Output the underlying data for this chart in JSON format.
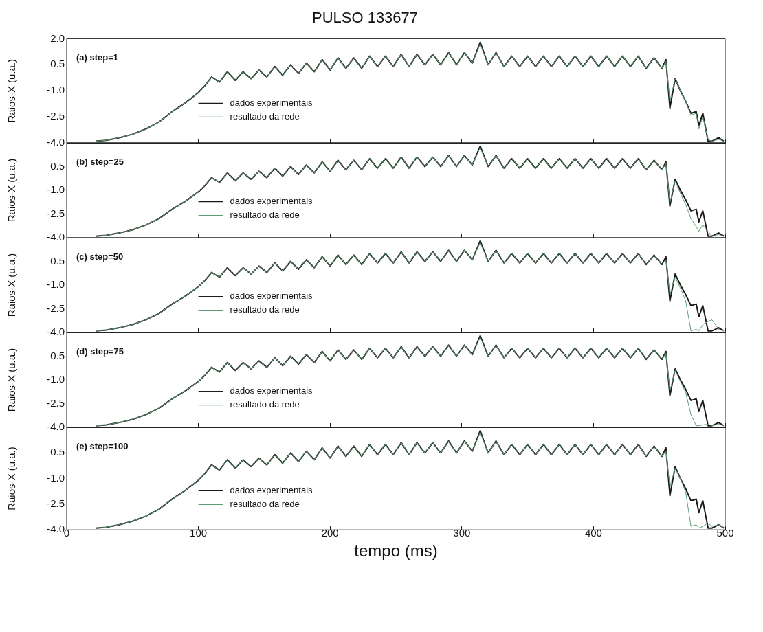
{
  "chart_data": [
    {
      "type": "line",
      "title": "PULSO 133677",
      "ylabel": "Raios-X (u.a.)",
      "annotations": [
        "(a) step=1"
      ],
      "legend": "bottom left",
      "grid": false,
      "tick_labels": "y",
      "xlim": [
        0,
        500
      ],
      "xticks": [
        0,
        100,
        200,
        300,
        400,
        500
      ],
      "ylim": [
        -4,
        2
      ],
      "yticks": [
        {
          "value": -4,
          "label": "-4.0"
        },
        {
          "value": -2.5,
          "label": "-2.5"
        },
        {
          "value": -1,
          "label": "-1.0"
        },
        {
          "value": 0.5,
          "label": "0.5"
        },
        {
          "value": 2,
          "label": "2.0"
        }
      ],
      "x": [
        22,
        30,
        40,
        50,
        60,
        70,
        80,
        90,
        100,
        105,
        110,
        116,
        122,
        128,
        134,
        140,
        146,
        152,
        158,
        164,
        170,
        176,
        182,
        188,
        194,
        200,
        206,
        212,
        218,
        224,
        230,
        236,
        242,
        248,
        254,
        260,
        266,
        272,
        278,
        284,
        290,
        296,
        302,
        308,
        314,
        320,
        326,
        332,
        338,
        344,
        350,
        356,
        362,
        368,
        374,
        380,
        386,
        392,
        398,
        404,
        410,
        416,
        422,
        428,
        434,
        440,
        446,
        452,
        455,
        458,
        462,
        466,
        470,
        474,
        478,
        480,
        483,
        487,
        490,
        495,
        499
      ],
      "series": [
        {
          "name": "dados experimentais",
          "color": "#1a1a1a",
          "values": [
            -3.9,
            -3.85,
            -3.7,
            -3.5,
            -3.2,
            -2.8,
            -2.2,
            -1.7,
            -1.1,
            -0.7,
            -0.2,
            -0.5,
            0.1,
            -0.4,
            0.1,
            -0.3,
            0.2,
            -0.2,
            0.4,
            -0.1,
            0.5,
            0.0,
            0.6,
            0.1,
            0.8,
            0.2,
            0.9,
            0.3,
            0.9,
            0.3,
            1.0,
            0.4,
            1.0,
            0.4,
            1.1,
            0.4,
            1.1,
            0.5,
            1.1,
            0.5,
            1.2,
            0.5,
            1.2,
            0.6,
            1.8,
            0.5,
            1.2,
            0.4,
            1.0,
            0.4,
            1.0,
            0.4,
            1.0,
            0.4,
            1.0,
            0.4,
            1.0,
            0.4,
            1.0,
            0.4,
            1.0,
            0.4,
            1.0,
            0.4,
            1.0,
            0.3,
            0.9,
            0.3,
            0.8,
            -2.0,
            -0.3,
            -1.0,
            -1.6,
            -2.3,
            -2.2,
            -3.0,
            -2.3,
            -3.9,
            -3.9,
            -3.7,
            -3.9
          ]
        },
        {
          "name": "resultado da rede",
          "color": "#5e9c74",
          "values": [
            -3.9,
            -3.85,
            -3.7,
            -3.5,
            -3.2,
            -2.8,
            -2.2,
            -1.7,
            -1.1,
            -0.7,
            -0.2,
            -0.5,
            0.1,
            -0.4,
            0.1,
            -0.3,
            0.2,
            -0.2,
            0.4,
            -0.1,
            0.5,
            0.0,
            0.6,
            0.1,
            0.8,
            0.2,
            0.9,
            0.3,
            0.9,
            0.3,
            1.0,
            0.4,
            1.0,
            0.4,
            1.1,
            0.4,
            1.1,
            0.5,
            1.1,
            0.5,
            1.2,
            0.5,
            1.2,
            0.6,
            1.7,
            0.5,
            1.2,
            0.4,
            1.0,
            0.4,
            1.0,
            0.4,
            1.0,
            0.4,
            1.0,
            0.4,
            1.0,
            0.4,
            1.0,
            0.4,
            1.0,
            0.4,
            1.0,
            0.4,
            1.0,
            0.3,
            0.9,
            0.3,
            0.7,
            -1.6,
            -0.3,
            -1.0,
            -1.6,
            -2.4,
            -2.3,
            -3.2,
            -2.5,
            -3.8,
            -3.9,
            -3.8,
            -3.9
          ]
        }
      ]
    },
    {
      "type": "line",
      "ylabel": "Raios-X (u.a.)",
      "annotations": [
        "(b) step=25"
      ],
      "legend": "bottom left",
      "grid": false,
      "tick_labels": "y",
      "xlim": [
        0,
        500
      ],
      "xticks": [
        0,
        100,
        200,
        300,
        400,
        500
      ],
      "ylim": [
        -4,
        2
      ],
      "yticks": [
        {
          "value": -4,
          "label": "-4.0"
        },
        {
          "value": -2.5,
          "label": "-2.5"
        },
        {
          "value": -1,
          "label": "-1.0"
        },
        {
          "value": 0.5,
          "label": "0.5"
        },
        {
          "value": 2,
          "label": null
        }
      ],
      "x": [
        22,
        30,
        40,
        50,
        60,
        70,
        80,
        90,
        100,
        105,
        110,
        116,
        122,
        128,
        134,
        140,
        146,
        152,
        158,
        164,
        170,
        176,
        182,
        188,
        194,
        200,
        206,
        212,
        218,
        224,
        230,
        236,
        242,
        248,
        254,
        260,
        266,
        272,
        278,
        284,
        290,
        296,
        302,
        308,
        314,
        320,
        326,
        332,
        338,
        344,
        350,
        356,
        362,
        368,
        374,
        380,
        386,
        392,
        398,
        404,
        410,
        416,
        422,
        428,
        434,
        440,
        446,
        452,
        455,
        458,
        462,
        466,
        470,
        474,
        478,
        480,
        483,
        487,
        490,
        495,
        499
      ],
      "series": [
        {
          "name": "dados experimentais",
          "color": "#1a1a1a",
          "values": [
            -3.9,
            -3.85,
            -3.7,
            -3.5,
            -3.2,
            -2.8,
            -2.2,
            -1.7,
            -1.1,
            -0.7,
            -0.2,
            -0.5,
            0.1,
            -0.4,
            0.1,
            -0.3,
            0.2,
            -0.2,
            0.4,
            -0.1,
            0.5,
            0.0,
            0.6,
            0.1,
            0.8,
            0.2,
            0.9,
            0.3,
            0.9,
            0.3,
            1.0,
            0.4,
            1.0,
            0.4,
            1.1,
            0.4,
            1.1,
            0.5,
            1.1,
            0.5,
            1.2,
            0.5,
            1.2,
            0.6,
            1.8,
            0.5,
            1.2,
            0.4,
            1.0,
            0.4,
            1.0,
            0.4,
            1.0,
            0.4,
            1.0,
            0.4,
            1.0,
            0.4,
            1.0,
            0.4,
            1.0,
            0.4,
            1.0,
            0.4,
            1.0,
            0.3,
            0.9,
            0.3,
            0.8,
            -2.0,
            -0.3,
            -1.0,
            -1.6,
            -2.3,
            -2.2,
            -3.0,
            -2.3,
            -3.9,
            -3.9,
            -3.7,
            -3.9
          ]
        },
        {
          "name": "resultado da rede",
          "color": "#5e9c74",
          "values": [
            -3.9,
            -3.85,
            -3.7,
            -3.5,
            -3.2,
            -2.8,
            -2.2,
            -1.7,
            -1.1,
            -0.7,
            -0.2,
            -0.5,
            0.1,
            -0.4,
            0.1,
            -0.3,
            0.2,
            -0.2,
            0.4,
            -0.1,
            0.5,
            0.0,
            0.6,
            0.1,
            0.8,
            0.2,
            0.9,
            0.3,
            0.9,
            0.3,
            1.0,
            0.4,
            1.0,
            0.4,
            1.1,
            0.4,
            1.1,
            0.5,
            1.1,
            0.5,
            1.2,
            0.5,
            1.2,
            0.6,
            1.7,
            0.5,
            1.2,
            0.4,
            1.0,
            0.4,
            1.0,
            0.4,
            1.0,
            0.4,
            1.0,
            0.4,
            1.0,
            0.4,
            1.0,
            0.4,
            1.0,
            0.4,
            1.0,
            0.4,
            1.0,
            0.3,
            0.9,
            0.3,
            0.7,
            -1.8,
            -0.4,
            -1.2,
            -1.9,
            -2.8,
            -3.3,
            -3.6,
            -3.2,
            -3.6,
            -3.9,
            -3.8,
            -3.9
          ]
        }
      ]
    },
    {
      "type": "line",
      "ylabel": "Raios-X (u.a.)",
      "annotations": [
        "(c) step=50"
      ],
      "legend": "bottom left",
      "grid": false,
      "tick_labels": "y",
      "xlim": [
        0,
        500
      ],
      "xticks": [
        0,
        100,
        200,
        300,
        400,
        500
      ],
      "ylim": [
        -4,
        2
      ],
      "yticks": [
        {
          "value": -4,
          "label": "-4.0"
        },
        {
          "value": -2.5,
          "label": "-2.5"
        },
        {
          "value": -1,
          "label": "-1.0"
        },
        {
          "value": 0.5,
          "label": "0.5"
        },
        {
          "value": 2,
          "label": null
        }
      ],
      "x": [
        22,
        30,
        40,
        50,
        60,
        70,
        80,
        90,
        100,
        105,
        110,
        116,
        122,
        128,
        134,
        140,
        146,
        152,
        158,
        164,
        170,
        176,
        182,
        188,
        194,
        200,
        206,
        212,
        218,
        224,
        230,
        236,
        242,
        248,
        254,
        260,
        266,
        272,
        278,
        284,
        290,
        296,
        302,
        308,
        314,
        320,
        326,
        332,
        338,
        344,
        350,
        356,
        362,
        368,
        374,
        380,
        386,
        392,
        398,
        404,
        410,
        416,
        422,
        428,
        434,
        440,
        446,
        452,
        455,
        458,
        462,
        466,
        470,
        474,
        478,
        480,
        483,
        487,
        490,
        495,
        499
      ],
      "series": [
        {
          "name": "dados experimentais",
          "color": "#1a1a1a",
          "values": [
            -3.9,
            -3.85,
            -3.7,
            -3.5,
            -3.2,
            -2.8,
            -2.2,
            -1.7,
            -1.1,
            -0.7,
            -0.2,
            -0.5,
            0.1,
            -0.4,
            0.1,
            -0.3,
            0.2,
            -0.2,
            0.4,
            -0.1,
            0.5,
            0.0,
            0.6,
            0.1,
            0.8,
            0.2,
            0.9,
            0.3,
            0.9,
            0.3,
            1.0,
            0.4,
            1.0,
            0.4,
            1.1,
            0.4,
            1.1,
            0.5,
            1.1,
            0.5,
            1.2,
            0.5,
            1.2,
            0.6,
            1.8,
            0.5,
            1.2,
            0.4,
            1.0,
            0.4,
            1.0,
            0.4,
            1.0,
            0.4,
            1.0,
            0.4,
            1.0,
            0.4,
            1.0,
            0.4,
            1.0,
            0.4,
            1.0,
            0.4,
            1.0,
            0.3,
            0.9,
            0.3,
            0.8,
            -2.0,
            -0.3,
            -1.0,
            -1.6,
            -2.3,
            -2.2,
            -3.0,
            -2.3,
            -3.9,
            -3.9,
            -3.7,
            -3.9
          ]
        },
        {
          "name": "resultado da rede",
          "color": "#5e9c74",
          "values": [
            -3.9,
            -3.85,
            -3.7,
            -3.5,
            -3.2,
            -2.8,
            -2.2,
            -1.7,
            -1.1,
            -0.7,
            -0.2,
            -0.5,
            0.1,
            -0.4,
            0.1,
            -0.3,
            0.2,
            -0.2,
            0.4,
            -0.1,
            0.5,
            0.0,
            0.6,
            0.1,
            0.8,
            0.2,
            0.9,
            0.3,
            0.9,
            0.3,
            1.0,
            0.4,
            1.0,
            0.4,
            1.1,
            0.4,
            1.1,
            0.5,
            1.1,
            0.5,
            1.2,
            0.5,
            1.2,
            0.6,
            1.7,
            0.5,
            1.2,
            0.4,
            1.0,
            0.4,
            1.0,
            0.4,
            1.0,
            0.4,
            1.0,
            0.4,
            1.0,
            0.4,
            1.0,
            0.4,
            1.0,
            0.4,
            1.0,
            0.4,
            1.0,
            0.3,
            0.9,
            0.3,
            0.6,
            -1.6,
            -0.5,
            -1.2,
            -2.0,
            -3.9,
            -3.8,
            -3.9,
            -3.5,
            -3.3,
            -3.2,
            -3.8,
            -3.9
          ]
        }
      ]
    },
    {
      "type": "line",
      "ylabel": "Raios-X (u.a.)",
      "annotations": [
        "(d) step=75"
      ],
      "legend": "bottom left",
      "grid": false,
      "tick_labels": "y",
      "xlim": [
        0,
        500
      ],
      "xticks": [
        0,
        100,
        200,
        300,
        400,
        500
      ],
      "ylim": [
        -4,
        2
      ],
      "yticks": [
        {
          "value": -4,
          "label": "-4.0"
        },
        {
          "value": -2.5,
          "label": "-2.5"
        },
        {
          "value": -1,
          "label": "-1.0"
        },
        {
          "value": 0.5,
          "label": "0.5"
        },
        {
          "value": 2,
          "label": null
        }
      ],
      "x": [
        22,
        30,
        40,
        50,
        60,
        70,
        80,
        90,
        100,
        105,
        110,
        116,
        122,
        128,
        134,
        140,
        146,
        152,
        158,
        164,
        170,
        176,
        182,
        188,
        194,
        200,
        206,
        212,
        218,
        224,
        230,
        236,
        242,
        248,
        254,
        260,
        266,
        272,
        278,
        284,
        290,
        296,
        302,
        308,
        314,
        320,
        326,
        332,
        338,
        344,
        350,
        356,
        362,
        368,
        374,
        380,
        386,
        392,
        398,
        404,
        410,
        416,
        422,
        428,
        434,
        440,
        446,
        452,
        455,
        458,
        462,
        466,
        470,
        474,
        478,
        480,
        483,
        487,
        490,
        495,
        499
      ],
      "series": [
        {
          "name": "dados experimentais",
          "color": "#1a1a1a",
          "values": [
            -3.9,
            -3.85,
            -3.7,
            -3.5,
            -3.2,
            -2.8,
            -2.2,
            -1.7,
            -1.1,
            -0.7,
            -0.2,
            -0.5,
            0.1,
            -0.4,
            0.1,
            -0.3,
            0.2,
            -0.2,
            0.4,
            -0.1,
            0.5,
            0.0,
            0.6,
            0.1,
            0.8,
            0.2,
            0.9,
            0.3,
            0.9,
            0.3,
            1.0,
            0.4,
            1.0,
            0.4,
            1.1,
            0.4,
            1.1,
            0.5,
            1.1,
            0.5,
            1.2,
            0.5,
            1.2,
            0.6,
            1.8,
            0.5,
            1.2,
            0.4,
            1.0,
            0.4,
            1.0,
            0.4,
            1.0,
            0.4,
            1.0,
            0.4,
            1.0,
            0.4,
            1.0,
            0.4,
            1.0,
            0.4,
            1.0,
            0.4,
            1.0,
            0.3,
            0.9,
            0.3,
            0.8,
            -2.0,
            -0.3,
            -1.0,
            -1.6,
            -2.3,
            -2.2,
            -3.0,
            -2.3,
            -3.9,
            -3.9,
            -3.7,
            -3.9
          ]
        },
        {
          "name": "resultado da rede",
          "color": "#5e9c74",
          "values": [
            -3.9,
            -3.85,
            -3.7,
            -3.5,
            -3.2,
            -2.8,
            -2.2,
            -1.7,
            -1.1,
            -0.7,
            -0.2,
            -0.5,
            0.1,
            -0.4,
            0.1,
            -0.3,
            0.2,
            -0.2,
            0.4,
            -0.1,
            0.5,
            0.0,
            0.6,
            0.1,
            0.8,
            0.2,
            0.9,
            0.3,
            0.9,
            0.3,
            1.0,
            0.4,
            1.0,
            0.4,
            1.1,
            0.4,
            1.1,
            0.5,
            1.1,
            0.5,
            1.2,
            0.5,
            1.2,
            0.6,
            1.7,
            0.5,
            1.2,
            0.4,
            1.0,
            0.4,
            1.0,
            0.4,
            1.0,
            0.4,
            1.0,
            0.4,
            1.0,
            0.4,
            1.0,
            0.4,
            1.0,
            0.4,
            1.0,
            0.4,
            1.0,
            0.3,
            0.9,
            0.3,
            0.7,
            -1.7,
            -0.4,
            -1.1,
            -1.8,
            -3.2,
            -3.9,
            -3.9,
            -3.85,
            -3.8,
            -3.9,
            -3.8,
            -3.9
          ]
        }
      ]
    },
    {
      "type": "line",
      "ylabel": "Raios-X (u.a.)",
      "xlabel": "tempo (ms)",
      "annotations": [
        "(e) step=100"
      ],
      "legend": "bottom left",
      "grid": false,
      "xlim": [
        0,
        500
      ],
      "xticks": [
        0,
        100,
        200,
        300,
        400,
        500
      ],
      "ylim": [
        -4,
        2
      ],
      "yticks": [
        {
          "value": -4,
          "label": "-4.0"
        },
        {
          "value": -2.5,
          "label": "-2.5"
        },
        {
          "value": -1,
          "label": "-1.0"
        },
        {
          "value": 0.5,
          "label": "0.5"
        },
        {
          "value": 2,
          "label": null
        }
      ],
      "x": [
        22,
        30,
        40,
        50,
        60,
        70,
        80,
        90,
        100,
        105,
        110,
        116,
        122,
        128,
        134,
        140,
        146,
        152,
        158,
        164,
        170,
        176,
        182,
        188,
        194,
        200,
        206,
        212,
        218,
        224,
        230,
        236,
        242,
        248,
        254,
        260,
        266,
        272,
        278,
        284,
        290,
        296,
        302,
        308,
        314,
        320,
        326,
        332,
        338,
        344,
        350,
        356,
        362,
        368,
        374,
        380,
        386,
        392,
        398,
        404,
        410,
        416,
        422,
        428,
        434,
        440,
        446,
        452,
        455,
        458,
        462,
        466,
        470,
        474,
        478,
        480,
        483,
        487,
        490,
        495,
        499
      ],
      "series": [
        {
          "name": "dados experimentais",
          "color": "#1a1a1a",
          "values": [
            -3.9,
            -3.85,
            -3.7,
            -3.5,
            -3.2,
            -2.8,
            -2.2,
            -1.7,
            -1.1,
            -0.7,
            -0.2,
            -0.5,
            0.1,
            -0.4,
            0.1,
            -0.3,
            0.2,
            -0.2,
            0.4,
            -0.1,
            0.5,
            0.0,
            0.6,
            0.1,
            0.8,
            0.2,
            0.9,
            0.3,
            0.9,
            0.3,
            1.0,
            0.4,
            1.0,
            0.4,
            1.1,
            0.4,
            1.1,
            0.5,
            1.1,
            0.5,
            1.2,
            0.5,
            1.2,
            0.6,
            1.8,
            0.5,
            1.2,
            0.4,
            1.0,
            0.4,
            1.0,
            0.4,
            1.0,
            0.4,
            1.0,
            0.4,
            1.0,
            0.4,
            1.0,
            0.4,
            1.0,
            0.4,
            1.0,
            0.4,
            1.0,
            0.3,
            0.9,
            0.3,
            0.8,
            -2.0,
            -0.3,
            -1.0,
            -1.6,
            -2.3,
            -2.2,
            -3.0,
            -2.3,
            -3.9,
            -3.9,
            -3.7,
            -3.9
          ]
        },
        {
          "name": "resultado da rede",
          "color": "#5e9c74",
          "values": [
            -3.9,
            -3.85,
            -3.7,
            -3.5,
            -3.2,
            -2.8,
            -2.2,
            -1.7,
            -1.1,
            -0.7,
            -0.2,
            -0.5,
            0.1,
            -0.4,
            0.1,
            -0.3,
            0.2,
            -0.2,
            0.4,
            -0.1,
            0.5,
            0.0,
            0.6,
            0.1,
            0.8,
            0.2,
            0.9,
            0.3,
            0.9,
            0.3,
            1.0,
            0.4,
            1.0,
            0.4,
            1.1,
            0.4,
            1.1,
            0.5,
            1.1,
            0.5,
            1.2,
            0.5,
            1.2,
            0.6,
            1.7,
            0.5,
            1.2,
            0.4,
            1.0,
            0.4,
            1.0,
            0.4,
            1.0,
            0.4,
            1.0,
            0.4,
            1.0,
            0.4,
            1.0,
            0.4,
            1.0,
            0.4,
            1.0,
            0.4,
            1.0,
            0.3,
            0.9,
            0.3,
            0.6,
            -1.5,
            -0.4,
            -1.0,
            -1.8,
            -3.8,
            -3.7,
            -3.9,
            -3.8,
            -3.6,
            -3.8,
            -3.7,
            -3.9
          ]
        }
      ]
    }
  ]
}
